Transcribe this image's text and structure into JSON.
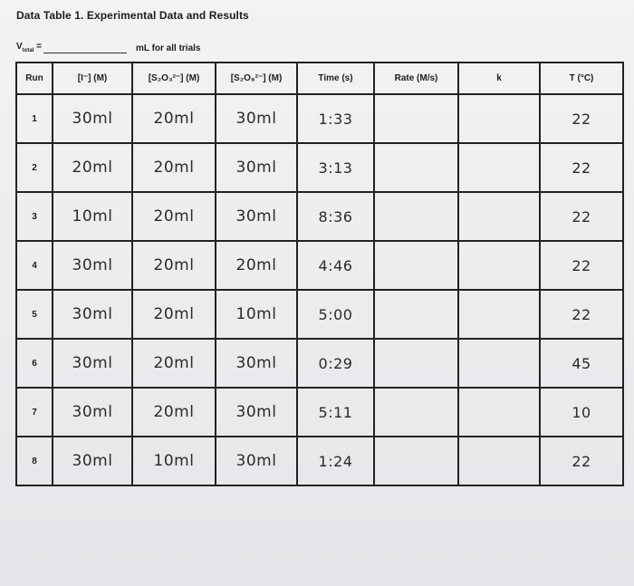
{
  "title": "Data Table 1. Experimental Data and Results",
  "vtotal": {
    "prefix": "V",
    "subscript": "total",
    "equals": " =",
    "unit": "mL for all trials"
  },
  "columns": {
    "run": "Run",
    "iodide": "[I⁻] (M)",
    "s2o3": "[S₂O₃²⁻] (M)",
    "s2o8": "[S₂O₈²⁻] (M)",
    "time": "Time (s)",
    "rate": "Rate (M/s)",
    "k": "k",
    "temp": "T (°C)"
  },
  "rows": [
    {
      "run": "1",
      "iodide": "30ml",
      "s2o3": "20ml",
      "s2o8": "30ml",
      "time": "1:33",
      "rate": "",
      "k": "",
      "temp": "22"
    },
    {
      "run": "2",
      "iodide": "20ml",
      "s2o3": "20ml",
      "s2o8": "30ml",
      "time": "3:13",
      "rate": "",
      "k": "",
      "temp": "22"
    },
    {
      "run": "3",
      "iodide": "10ml",
      "s2o3": "20ml",
      "s2o8": "30ml",
      "time": "8:36",
      "rate": "",
      "k": "",
      "temp": "22"
    },
    {
      "run": "4",
      "iodide": "30ml",
      "s2o3": "20ml",
      "s2o8": "20ml",
      "time": "4:46",
      "rate": "",
      "k": "",
      "temp": "22"
    },
    {
      "run": "5",
      "iodide": "30ml",
      "s2o3": "20ml",
      "s2o8": "10ml",
      "time": "5:00",
      "rate": "",
      "k": "",
      "temp": "22"
    },
    {
      "run": "6",
      "iodide": "30ml",
      "s2o3": "20ml",
      "s2o8": "30ml",
      "time": "0:29",
      "rate": "",
      "k": "",
      "temp": "45"
    },
    {
      "run": "7",
      "iodide": "30ml",
      "s2o3": "20ml",
      "s2o8": "30ml",
      "time": "5:11",
      "rate": "",
      "k": "",
      "temp": "10"
    },
    {
      "run": "8",
      "iodide": "30ml",
      "s2o3": "10ml",
      "s2o8": "30ml",
      "time": "1:24",
      "rate": "",
      "k": "",
      "temp": "22"
    }
  ]
}
